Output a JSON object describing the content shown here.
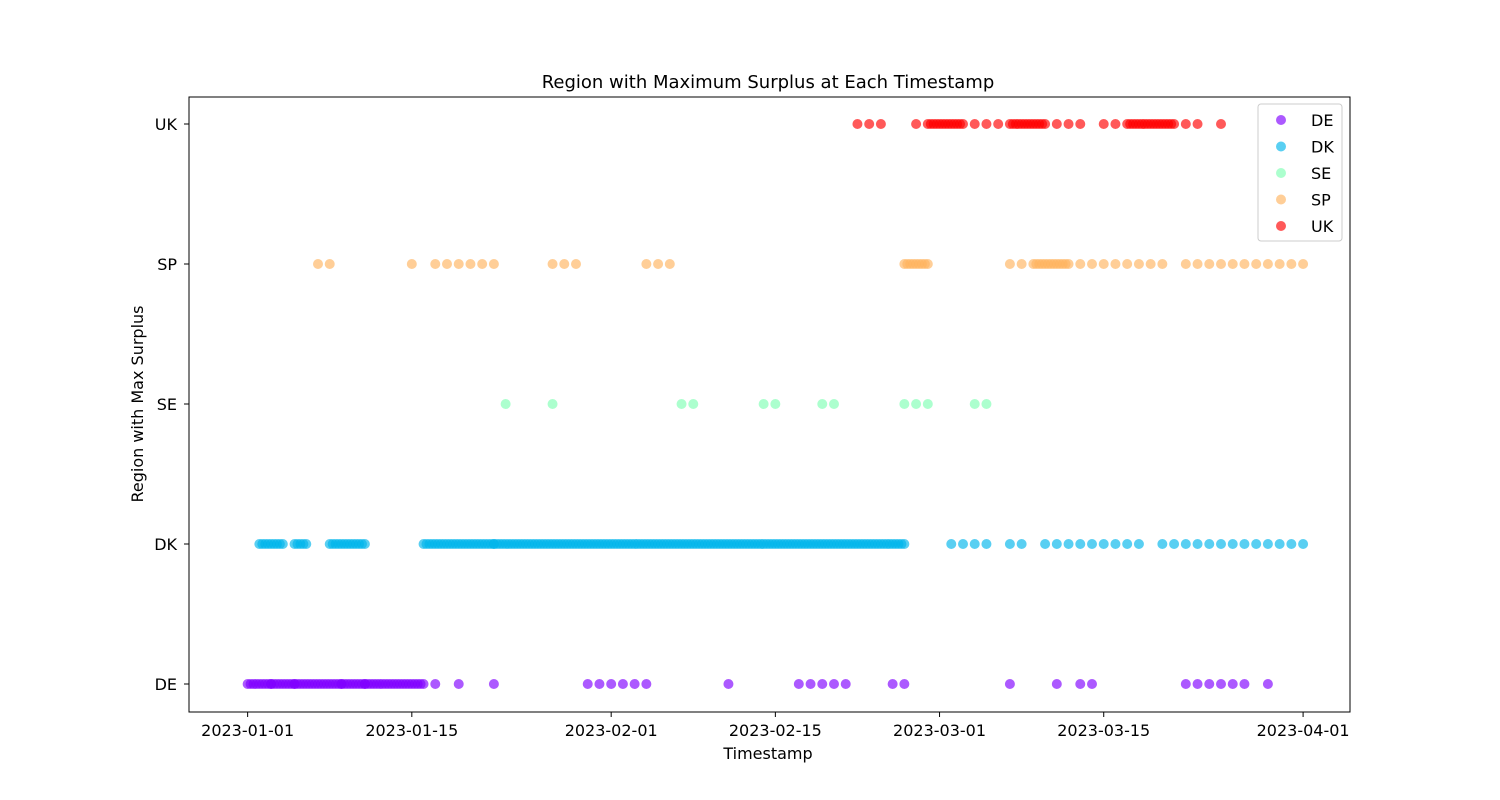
{
  "chart_data": {
    "type": "scatter",
    "title": "Region with Maximum Surplus at Each Timestamp",
    "xlabel": "Timestamp",
    "ylabel": "Region with Max Surplus",
    "x_axis": {
      "type": "date",
      "range": [
        "2022-12-27",
        "2023-04-05"
      ],
      "ticks": [
        "2023-01-01",
        "2023-01-15",
        "2023-02-01",
        "2023-02-15",
        "2023-03-01",
        "2023-03-15",
        "2023-04-01"
      ],
      "tick_labels": [
        "2023-01-01",
        "2023-01-15",
        "2023-02-01",
        "2023-02-15",
        "2023-03-01",
        "2023-03-15",
        "2023-04-01"
      ]
    },
    "y_axis": {
      "type": "category",
      "categories": [
        "DE",
        "DK",
        "SE",
        "SP",
        "UK"
      ]
    },
    "grid": false,
    "legend": {
      "position": "top-right"
    },
    "series": [
      {
        "name": "DE",
        "color": "#8000ff",
        "category": "DE",
        "segments": [
          [
            "2023-01-01",
            "2023-01-03"
          ],
          [
            "2023-01-03",
            "2023-01-05"
          ],
          [
            "2023-01-05",
            "2023-01-09"
          ],
          [
            "2023-01-09",
            "2023-01-11"
          ],
          [
            "2023-01-11",
            "2023-01-16"
          ]
        ],
        "x": [
          "2023-01-17",
          "2023-01-19",
          "2023-01-22",
          "2023-01-30",
          "2023-01-31",
          "2023-02-01",
          "2023-02-02",
          "2023-02-03",
          "2023-02-04",
          "2023-02-11",
          "2023-02-17",
          "2023-02-18",
          "2023-02-19",
          "2023-02-20",
          "2023-02-21",
          "2023-02-25",
          "2023-02-26",
          "2023-03-07",
          "2023-03-11",
          "2023-03-13",
          "2023-03-14",
          "2023-03-22",
          "2023-03-23",
          "2023-03-24",
          "2023-03-25",
          "2023-03-26",
          "2023-03-27",
          "2023-03-29"
        ]
      },
      {
        "name": "DK",
        "color": "#00b5eb",
        "category": "DK",
        "segments": [
          [
            "2023-01-02",
            "2023-01-04"
          ],
          [
            "2023-01-05",
            "2023-01-06"
          ],
          [
            "2023-01-08",
            "2023-01-11"
          ],
          [
            "2023-01-16",
            "2023-01-22"
          ],
          [
            "2023-01-22",
            "2023-02-26"
          ]
        ],
        "x": [
          "2023-03-02",
          "2023-03-03",
          "2023-03-04",
          "2023-03-05",
          "2023-03-07",
          "2023-03-08",
          "2023-03-10",
          "2023-03-11",
          "2023-03-12",
          "2023-03-13",
          "2023-03-14",
          "2023-03-15",
          "2023-03-16",
          "2023-03-17",
          "2023-03-18",
          "2023-03-20",
          "2023-03-21",
          "2023-03-22",
          "2023-03-23",
          "2023-03-24",
          "2023-03-25",
          "2023-03-26",
          "2023-03-27",
          "2023-03-28",
          "2023-03-29",
          "2023-03-30",
          "2023-03-31",
          "2023-04-01"
        ]
      },
      {
        "name": "SE",
        "color": "#80ffb4",
        "category": "SE",
        "segments": [],
        "x": [
          "2023-01-23",
          "2023-01-27",
          "2023-02-07",
          "2023-02-08",
          "2023-02-14",
          "2023-02-15",
          "2023-02-19",
          "2023-02-20",
          "2023-02-26",
          "2023-02-27",
          "2023-02-28",
          "2023-03-04",
          "2023-03-05"
        ]
      },
      {
        "name": "SP",
        "color": "#ffb360",
        "category": "SP",
        "segments": [
          [
            "2023-02-26",
            "2023-02-28"
          ],
          [
            "2023-03-09",
            "2023-03-12"
          ]
        ],
        "x": [
          "2023-01-07",
          "2023-01-08",
          "2023-01-15",
          "2023-01-17",
          "2023-01-18",
          "2023-01-19",
          "2023-01-20",
          "2023-01-21",
          "2023-01-22",
          "2023-01-27",
          "2023-01-28",
          "2023-01-29",
          "2023-02-04",
          "2023-02-05",
          "2023-02-06",
          "2023-03-07",
          "2023-03-08",
          "2023-03-13",
          "2023-03-14",
          "2023-03-15",
          "2023-03-16",
          "2023-03-17",
          "2023-03-18",
          "2023-03-19",
          "2023-03-20",
          "2023-03-22",
          "2023-03-23",
          "2023-03-24",
          "2023-03-25",
          "2023-03-26",
          "2023-03-27",
          "2023-03-28",
          "2023-03-29",
          "2023-03-30",
          "2023-03-31",
          "2023-04-01"
        ]
      },
      {
        "name": "UK",
        "color": "#ff0000",
        "category": "UK",
        "segments": [
          [
            "2023-02-28",
            "2023-03-03"
          ],
          [
            "2023-03-07",
            "2023-03-10"
          ],
          [
            "2023-03-17",
            "2023-03-21"
          ]
        ],
        "x": [
          "2023-02-22",
          "2023-02-23",
          "2023-02-24",
          "2023-02-27",
          "2023-03-04",
          "2023-03-05",
          "2023-03-06",
          "2023-03-11",
          "2023-03-12",
          "2023-03-13",
          "2023-03-15",
          "2023-03-16",
          "2023-03-22",
          "2023-03-23",
          "2023-03-25"
        ]
      }
    ]
  }
}
